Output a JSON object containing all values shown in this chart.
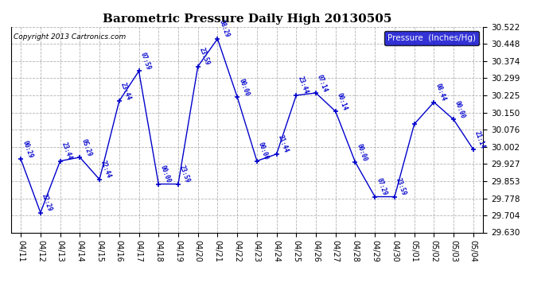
{
  "title": "Barometric Pressure Daily High 20130505",
  "copyright": "Copyright 2013 Cartronics.com",
  "legend_label": "Pressure  (Inches/Hg)",
  "ylim": [
    29.63,
    30.522
  ],
  "yticks": [
    29.63,
    29.704,
    29.778,
    29.853,
    29.927,
    30.002,
    30.076,
    30.15,
    30.225,
    30.299,
    30.374,
    30.448,
    30.522
  ],
  "background_color": "#ffffff",
  "line_color": "#0000cc",
  "data": [
    {
      "date": "04/11",
      "value": 29.948,
      "time": "00:29"
    },
    {
      "date": "04/12",
      "value": 29.716,
      "time": "22:29"
    },
    {
      "date": "04/13",
      "value": 29.94,
      "time": "23:44"
    },
    {
      "date": "04/14",
      "value": 29.956,
      "time": "05:29"
    },
    {
      "date": "04/15",
      "value": 29.86,
      "time": "22:44"
    },
    {
      "date": "04/16",
      "value": 30.2,
      "time": "23:44"
    },
    {
      "date": "04/17",
      "value": 30.33,
      "time": "07:59"
    },
    {
      "date": "04/18",
      "value": 29.84,
      "time": "00:00"
    },
    {
      "date": "04/19",
      "value": 29.84,
      "time": "23:59"
    },
    {
      "date": "04/20",
      "value": 30.35,
      "time": "23:59"
    },
    {
      "date": "04/21",
      "value": 30.47,
      "time": "08:29"
    },
    {
      "date": "04/22",
      "value": 30.218,
      "time": "00:00"
    },
    {
      "date": "04/23",
      "value": 29.94,
      "time": "00:00"
    },
    {
      "date": "04/24",
      "value": 29.97,
      "time": "21:44"
    },
    {
      "date": "04/25",
      "value": 30.225,
      "time": "23:44"
    },
    {
      "date": "04/26",
      "value": 30.235,
      "time": "07:14"
    },
    {
      "date": "04/27",
      "value": 30.155,
      "time": "00:14"
    },
    {
      "date": "04/28",
      "value": 29.935,
      "time": "00:00"
    },
    {
      "date": "04/29",
      "value": 29.785,
      "time": "07:29"
    },
    {
      "date": "04/30",
      "value": 29.785,
      "time": "23:59"
    },
    {
      "date": "05/01",
      "value": 30.1,
      "time": ""
    },
    {
      "date": "05/02",
      "value": 30.195,
      "time": "08:44"
    },
    {
      "date": "05/03",
      "value": 30.12,
      "time": "00:00"
    },
    {
      "date": "05/04",
      "value": 29.99,
      "time": "21:14"
    }
  ]
}
